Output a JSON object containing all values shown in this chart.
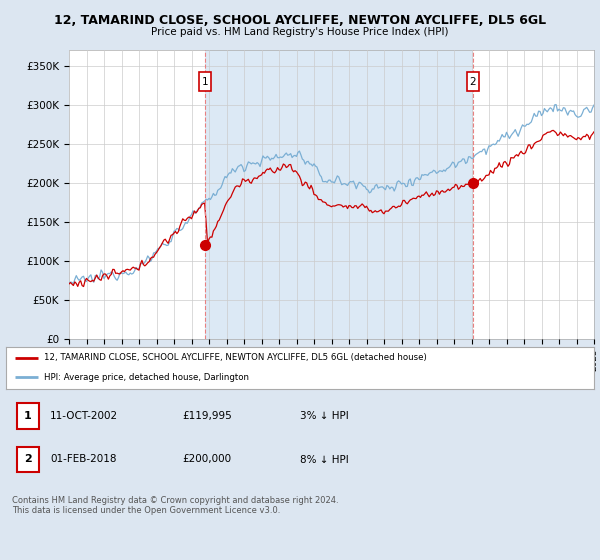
{
  "title": "12, TAMARIND CLOSE, SCHOOL AYCLIFFE, NEWTON AYCLIFFE, DL5 6GL",
  "subtitle": "Price paid vs. HM Land Registry's House Price Index (HPI)",
  "ylabel_ticks": [
    "£0",
    "£50K",
    "£100K",
    "£150K",
    "£200K",
    "£250K",
    "£300K",
    "£350K"
  ],
  "ytick_values": [
    0,
    50000,
    100000,
    150000,
    200000,
    250000,
    300000,
    350000
  ],
  "ylim": [
    0,
    370000
  ],
  "xlim": [
    1995,
    2025
  ],
  "sale1": {
    "date": "11-OCT-2002",
    "price": 119995,
    "label": "1",
    "x_year": 2002.79
  },
  "sale2": {
    "date": "01-FEB-2018",
    "price": 200000,
    "label": "2",
    "x_year": 2018.08
  },
  "legend_line1": "12, TAMARIND CLOSE, SCHOOL AYCLIFFE, NEWTON AYCLIFFE, DL5 6GL (detached house)",
  "legend_line2": "HPI: Average price, detached house, Darlington",
  "table_row1": [
    "1",
    "11-OCT-2002",
    "£119,995",
    "3% ↓ HPI"
  ],
  "table_row2": [
    "2",
    "01-FEB-2018",
    "£200,000",
    "8% ↓ HPI"
  ],
  "footnote": "Contains HM Land Registry data © Crown copyright and database right 2024.\nThis data is licensed under the Open Government Licence v3.0.",
  "line_color_red": "#cc0000",
  "line_color_blue": "#7bafd4",
  "bg_color": "#dce6f1",
  "plot_bg": "#ffffff",
  "grid_color": "#cccccc",
  "vline_color": "#e88080",
  "shade_color": "#dce9f5",
  "marker_color": "#cc0000",
  "label_box_color": "#cc0000"
}
